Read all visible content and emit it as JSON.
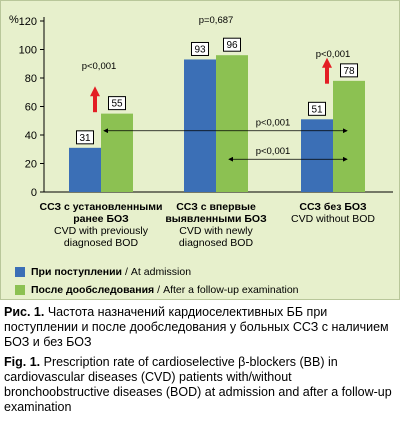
{
  "chart_data": {
    "type": "bar",
    "ylabel": "%",
    "ylim": [
      0,
      120
    ],
    "yticks": [
      0,
      20,
      40,
      60,
      80,
      100,
      120
    ],
    "grid": false,
    "categories": [
      {
        "ru_lines": [
          "ССЗ с установленными",
          "ранее БОЗ"
        ],
        "en_lines": [
          "CVD with previously",
          "diagnosed BOD"
        ]
      },
      {
        "ru_lines": [
          "ССЗ с впервые",
          "выявленными БОЗ"
        ],
        "en_lines": [
          "CVD with newly",
          "diagnosed BOD"
        ]
      },
      {
        "ru_lines": [
          "ССЗ без БОЗ"
        ],
        "en_lines": [
          "CVD without BOD"
        ]
      }
    ],
    "series": [
      {
        "name_ru": "При поступлении",
        "name_en": "At admission",
        "color": "#3b6fb6",
        "values": [
          31,
          93,
          51
        ]
      },
      {
        "name_ru": "После дообследования",
        "name_en": "After a follow-up examination",
        "color": "#8cc152",
        "values": [
          55,
          96,
          78
        ]
      }
    ],
    "annotations": {
      "pvalues_top": [
        "p<0,001",
        "p=0,687",
        "p<0,001"
      ],
      "comparisons": [
        {
          "label": "p<0,001",
          "from_group": 0,
          "to_group": 2,
          "level": 43
        },
        {
          "label": "p<0,001",
          "from_group": 0,
          "to_group": 2,
          "level": 23
        }
      ],
      "up_arrows_groups": [
        0,
        2
      ],
      "arrow_color": "#e31e24"
    }
  },
  "legend": {
    "sep": "/",
    "items": [
      {
        "ru": "При поступлении",
        "en": "At admission"
      },
      {
        "ru": "После дообследования",
        "en": "After a follow-up examination"
      }
    ]
  },
  "captions": {
    "ru_label": "Рис. 1.",
    "ru_text": "Частота назначений кардиоселективных ББ при поступлении и после дообследования у больных ССЗ с наличием БОЗ и без БОЗ",
    "en_label": "Fig. 1.",
    "en_text": "Prescription rate of cardioselective β-blockers (BB) in cardiovascular diseases (CVD) patients with/without bronchoobstructive diseases (BOD) at admission and after a follow-up examination"
  }
}
